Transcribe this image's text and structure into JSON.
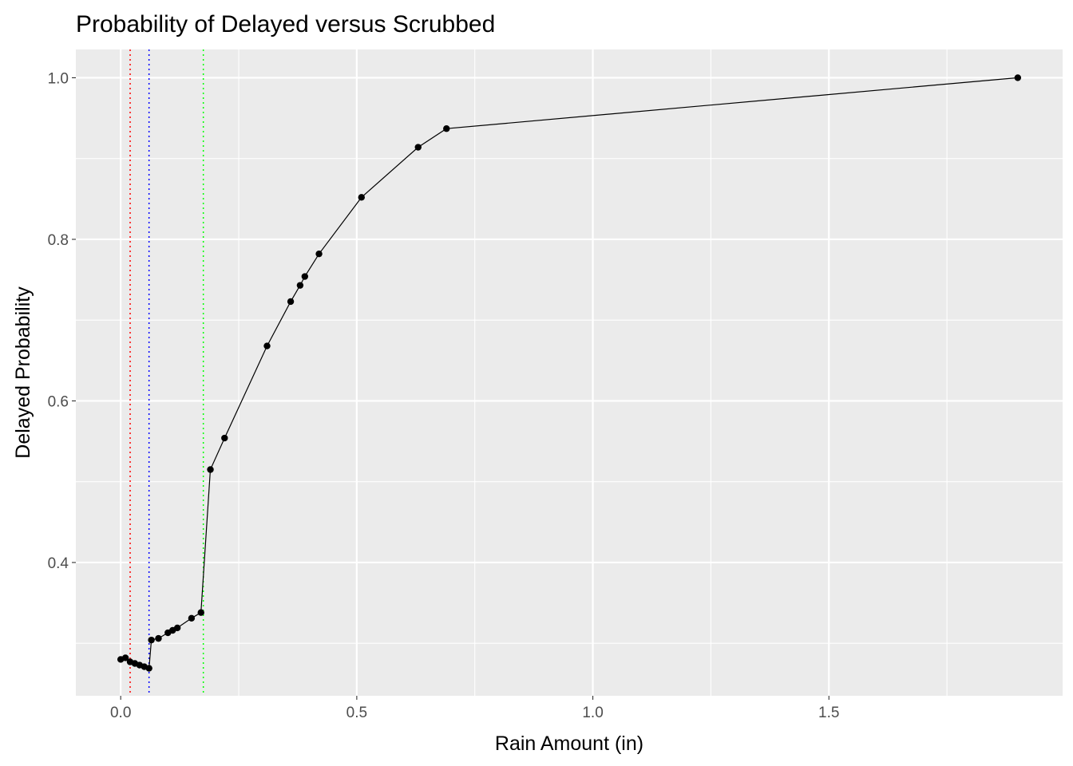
{
  "chart_data": {
    "type": "line",
    "title": "Probability of Delayed versus Scrubbed",
    "xlabel": "Rain Amount (in)",
    "ylabel": "Delayed Probability",
    "xlim": [
      -0.095,
      1.995
    ],
    "ylim": [
      0.235,
      1.035
    ],
    "x_ticks": [
      0.0,
      0.5,
      1.0,
      1.5
    ],
    "x_tick_labels": [
      "0.0",
      "0.5",
      "1.0",
      "1.5"
    ],
    "y_ticks": [
      0.4,
      0.6,
      0.8,
      1.0
    ],
    "y_tick_labels": [
      "0.4",
      "0.6",
      "0.8",
      "1.0"
    ],
    "grid": true,
    "background": "#ebebeb",
    "grid_color": "#ffffff",
    "line_color": "#000000",
    "reference_lines": [
      {
        "x": 0.02,
        "color": "#ff0000",
        "style": "dotted"
      },
      {
        "x": 0.06,
        "color": "#0000ff",
        "style": "dotted"
      },
      {
        "x": 0.175,
        "color": "#00ff00",
        "style": "dotted"
      }
    ],
    "series": [
      {
        "x": [
          0.0,
          0.01,
          0.02,
          0.03,
          0.04,
          0.05,
          0.06,
          0.065,
          0.08,
          0.1,
          0.11,
          0.12,
          0.15,
          0.17,
          0.19,
          0.22,
          0.31,
          0.36,
          0.38,
          0.39,
          0.42,
          0.51,
          0.63,
          0.69,
          1.9
        ],
        "y": [
          0.28,
          0.282,
          0.277,
          0.275,
          0.273,
          0.271,
          0.269,
          0.304,
          0.306,
          0.313,
          0.316,
          0.319,
          0.331,
          0.338,
          0.515,
          0.554,
          0.668,
          0.723,
          0.743,
          0.754,
          0.782,
          0.852,
          0.914,
          0.937,
          1.0
        ]
      }
    ]
  }
}
